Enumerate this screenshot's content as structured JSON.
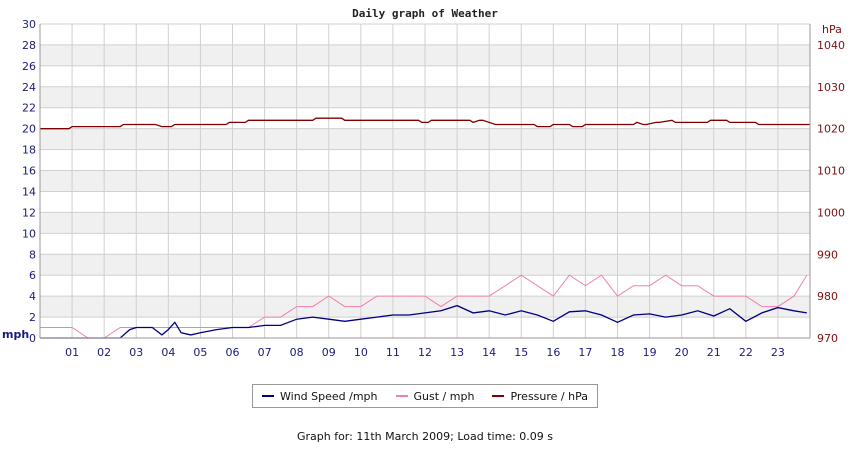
{
  "chart_data": {
    "type": "line",
    "title": "Daily graph of Weather",
    "x_ticks": [
      "01",
      "02",
      "03",
      "04",
      "05",
      "06",
      "07",
      "08",
      "09",
      "10",
      "11",
      "12",
      "13",
      "14",
      "15",
      "16",
      "17",
      "18",
      "19",
      "20",
      "21",
      "22",
      "23"
    ],
    "x_range": [
      0,
      24
    ],
    "left_axis": {
      "unit": "mph",
      "range": [
        0,
        30
      ],
      "ticks": [
        0,
        2,
        4,
        6,
        8,
        10,
        12,
        14,
        16,
        18,
        20,
        22,
        24,
        26,
        28,
        30
      ]
    },
    "right_axis": {
      "unit": "hPa",
      "range": [
        970,
        1045
      ],
      "ticks": [
        970,
        980,
        990,
        1000,
        1010,
        1020,
        1030,
        1040
      ]
    },
    "grid": true,
    "colors": {
      "wind": "#000080",
      "gust": "#f080b0",
      "pressure": "#800000",
      "band": "#f0f0f0",
      "grid": "#d0d0d0"
    },
    "series": [
      {
        "name": "Wind Speed /mph",
        "axis": "left",
        "x": [
          0,
          0.5,
          1,
          1.5,
          2,
          2.5,
          2.8,
          3,
          3.5,
          3.8,
          4,
          4.2,
          4.4,
          4.7,
          5,
          5.5,
          6,
          6.5,
          7,
          7.5,
          8,
          8.5,
          9,
          9.5,
          10,
          10.5,
          11,
          11.5,
          12,
          12.5,
          13,
          13.5,
          14,
          14.5,
          15,
          15.5,
          16,
          16.5,
          17,
          17.5,
          18,
          18.5,
          19,
          19.5,
          20,
          20.5,
          21,
          21.5,
          22,
          22.5,
          23,
          23.5,
          23.9
        ],
        "y": [
          0,
          0,
          0,
          0,
          0,
          0,
          0.8,
          1,
          1,
          0.3,
          0.8,
          1.5,
          0.5,
          0.3,
          0.5,
          0.8,
          1,
          1,
          1.2,
          1.2,
          1.8,
          2,
          1.8,
          1.6,
          1.8,
          2,
          2.2,
          2.2,
          2.4,
          2.6,
          3.1,
          2.4,
          2.6,
          2.2,
          2.6,
          2.2,
          1.6,
          2.5,
          2.6,
          2.2,
          1.5,
          2.2,
          2.3,
          2,
          2.2,
          2.6,
          2.1,
          2.8,
          1.6,
          2.4,
          2.9,
          2.6,
          2.4
        ]
      },
      {
        "name": "Gust / mph",
        "axis": "left",
        "x": [
          0,
          0.5,
          1,
          1.5,
          2,
          2.5,
          3,
          3.5,
          4,
          4.5,
          5,
          5.5,
          6,
          6.5,
          7,
          7.5,
          8,
          8.5,
          9,
          9.5,
          10,
          10.5,
          11,
          11.5,
          12,
          12.5,
          13,
          13.5,
          14,
          14.5,
          15,
          15.5,
          16,
          16.5,
          17,
          17.5,
          18,
          18.5,
          19,
          19.5,
          20,
          20.5,
          21,
          21.5,
          22,
          22.5,
          23,
          23.5,
          23.9
        ],
        "y": [
          1,
          1,
          1,
          0,
          0,
          1,
          1,
          1,
          1,
          1,
          1,
          1,
          1,
          1,
          2,
          2,
          3,
          3,
          4,
          3,
          3,
          4,
          4,
          4,
          4,
          3,
          4,
          4,
          4,
          5,
          6,
          5,
          4,
          6,
          5,
          6,
          4,
          5,
          5,
          6,
          5,
          5,
          4,
          4,
          4,
          3,
          3,
          4,
          6
        ]
      },
      {
        "name": "Pressure / hPa",
        "axis": "right",
        "x": [
          0,
          0.9,
          1,
          2.5,
          2.6,
          3.6,
          3.8,
          4.1,
          4.2,
          5.8,
          5.9,
          6.4,
          6.5,
          8.5,
          8.6,
          9.4,
          9.5,
          11.8,
          11.9,
          12.1,
          12.2,
          13.4,
          13.5,
          13.7,
          13.8,
          14.2,
          14.3,
          15.4,
          15.5,
          15.9,
          16,
          16.5,
          16.6,
          16.9,
          17,
          18.5,
          18.6,
          18.8,
          18.9,
          19.2,
          19.3,
          19.7,
          19.8,
          20.8,
          20.9,
          21.4,
          21.5,
          22.3,
          22.4,
          24
        ],
        "y": [
          1020,
          1020,
          1020.5,
          1020.5,
          1021,
          1021,
          1020.5,
          1020.5,
          1021,
          1021,
          1021.5,
          1021.5,
          1022,
          1022,
          1022.5,
          1022.5,
          1022,
          1022,
          1021.5,
          1021.5,
          1022,
          1022,
          1021.5,
          1022,
          1022,
          1021,
          1021,
          1021,
          1020.5,
          1020.5,
          1021,
          1021,
          1020.5,
          1020.5,
          1021,
          1021,
          1021.5,
          1021,
          1021,
          1021.5,
          1021.5,
          1022,
          1021.5,
          1021.5,
          1022,
          1022,
          1021.5,
          1021.5,
          1021,
          1021
        ]
      }
    ]
  },
  "footer_text": "Graph for: 11th March 2009; Load time: 0.09 s"
}
